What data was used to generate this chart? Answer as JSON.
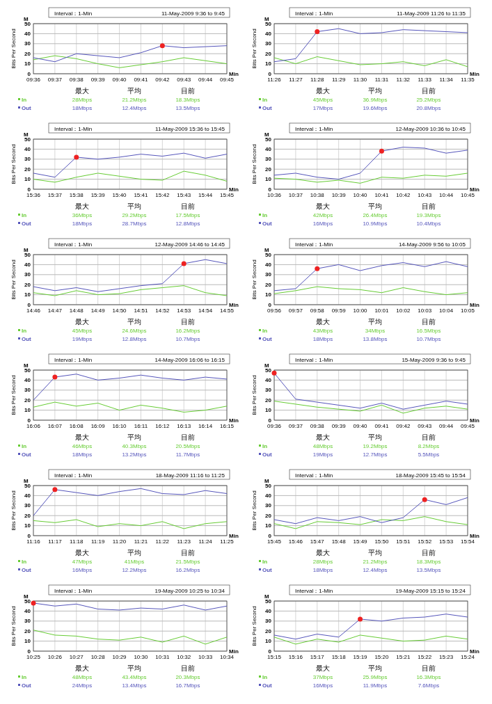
{
  "chart_data": [
    {
      "type": "line",
      "title": "Interval：1-Min",
      "subtitle": "11-May-2009  9:36 to 9:45",
      "xlabel": "Min",
      "ylabel": "Bits Per Second",
      "categories": [
        "09:36",
        "09:37",
        "09:38",
        "09:39",
        "09:40",
        "09:41",
        "09:42",
        "09:43",
        "09:44",
        "09:45"
      ],
      "ylim": [
        0,
        50
      ],
      "yticks": [
        0,
        10,
        20,
        30,
        40,
        50
      ],
      "grid": true,
      "legend": "bottom left",
      "series": [
        {
          "name": "In",
          "color": "#66cc33",
          "values": [
            14,
            18,
            15,
            10,
            6,
            9,
            12,
            16,
            13,
            10
          ]
        },
        {
          "name": "Out",
          "color": "#5555bb",
          "values": [
            16,
            12,
            20,
            18,
            16,
            21,
            28,
            26,
            27,
            28
          ]
        },
        {
          "type": "scatter",
          "color": "#ee2222",
          "values": [
            null,
            null,
            null,
            null,
            null,
            null,
            28,
            null,
            null,
            null
          ]
        }
      ],
      "annotations": [
        "M",
        "最大",
        "平均",
        "目前",
        "28Mbps",
        "21.2Mbps",
        "18.3Mbps",
        "18Mbps",
        "12.4Mbps",
        "13.5Mbps"
      ]
    },
    {
      "type": "line",
      "title": "Interval：1-Min",
      "subtitle": "11-May-2009  11:26 to 11:35",
      "xlabel": "Min",
      "ylabel": "Bits Per Second",
      "categories": [
        "11:26",
        "11:27",
        "11:28",
        "11:29",
        "11:30",
        "11:31",
        "11:32",
        "11:33",
        "11:34",
        "11:35"
      ],
      "ylim": [
        0,
        50
      ],
      "yticks": [
        0,
        10,
        20,
        30,
        40,
        50
      ],
      "grid": true,
      "legend": "bottom left",
      "series": [
        {
          "name": "In",
          "color": "#66cc33",
          "values": [
            16,
            10,
            17,
            13,
            9,
            10,
            12,
            8,
            14,
            7
          ]
        },
        {
          "name": "Out",
          "color": "#5555bb",
          "values": [
            12,
            15,
            42,
            45,
            40,
            41,
            44,
            43,
            42,
            41
          ]
        },
        {
          "type": "scatter",
          "color": "#ee2222",
          "values": [
            null,
            null,
            42,
            null,
            null,
            null,
            null,
            null,
            null,
            null
          ]
        }
      ],
      "annotations": [
        "M",
        "最大",
        "平均",
        "目前",
        "45Mbps",
        "36.9Mbps",
        "25.2Mbps",
        "17Mbps",
        "19.6Mbps",
        "20.8Mbps"
      ]
    },
    {
      "type": "line",
      "title": "Interval：1-Min",
      "subtitle": "11-May-2009  15:36 to 15:45",
      "xlabel": "Min",
      "ylabel": "Bits Per Second",
      "categories": [
        "15:36",
        "15:37",
        "15:38",
        "15:39",
        "15:40",
        "15:41",
        "15:42",
        "15:43",
        "15:44",
        "15:45"
      ],
      "ylim": [
        0,
        50
      ],
      "yticks": [
        0,
        10,
        20,
        30,
        40,
        50
      ],
      "grid": true,
      "legend": "bottom left",
      "series": [
        {
          "name": "In",
          "color": "#66cc33",
          "values": [
            10,
            7,
            12,
            16,
            13,
            10,
            9,
            18,
            14,
            8
          ]
        },
        {
          "name": "Out",
          "color": "#5555bb",
          "values": [
            16,
            12,
            32,
            30,
            32,
            35,
            33,
            36,
            31,
            35
          ]
        },
        {
          "type": "scatter",
          "color": "#ee2222",
          "values": [
            null,
            null,
            32,
            null,
            null,
            null,
            null,
            null,
            null,
            null
          ]
        }
      ],
      "annotations": [
        "M",
        "最大",
        "平均",
        "目前",
        "36Mbps",
        "29.2Mbps",
        "17.5Mbps",
        "18Mbps",
        "28.7Mbps",
        "12.8Mbps"
      ]
    },
    {
      "type": "line",
      "title": "Interval：1-Min",
      "subtitle": "12-May-2009  10:36 to 10:45",
      "xlabel": "Min",
      "ylabel": "Bits Per Second",
      "categories": [
        "10:36",
        "10:37",
        "10:38",
        "10:39",
        "10:40",
        "10:41",
        "10:42",
        "10:43",
        "10:44",
        "10:45"
      ],
      "ylim": [
        0,
        50
      ],
      "yticks": [
        0,
        10,
        20,
        30,
        40,
        50
      ],
      "grid": true,
      "legend": "bottom left",
      "series": [
        {
          "name": "In",
          "color": "#66cc33",
          "values": [
            11,
            10,
            7,
            9,
            6,
            12,
            11,
            14,
            13,
            16
          ]
        },
        {
          "name": "Out",
          "color": "#5555bb",
          "values": [
            14,
            16,
            12,
            10,
            16,
            38,
            42,
            41,
            36,
            39
          ]
        },
        {
          "type": "scatter",
          "color": "#ee2222",
          "values": [
            null,
            null,
            null,
            null,
            null,
            38,
            null,
            null,
            null,
            null
          ]
        }
      ],
      "annotations": [
        "M",
        "最大",
        "平均",
        "目前",
        "42Mbps",
        "26.4Mbps",
        "19.3Mbps",
        "16Mbps",
        "10.9Mbps",
        "10.4Mbps"
      ]
    },
    {
      "type": "line",
      "title": "Interval：1-Min",
      "subtitle": "12-May-2009  14:46 to 14:45",
      "xlabel": "Min",
      "ylabel": "Bits Per Second",
      "categories": [
        "14:46",
        "14:47",
        "14:48",
        "14:49",
        "14:50",
        "14:51",
        "14:52",
        "14:53",
        "14:54",
        "14:55"
      ],
      "ylim": [
        0,
        50
      ],
      "yticks": [
        0,
        10,
        20,
        30,
        40,
        50
      ],
      "grid": true,
      "legend": "bottom left",
      "series": [
        {
          "name": "In",
          "color": "#66cc33",
          "values": [
            12,
            9,
            14,
            10,
            11,
            15,
            17,
            19,
            12,
            9
          ]
        },
        {
          "name": "Out",
          "color": "#5555bb",
          "values": [
            18,
            14,
            17,
            13,
            16,
            19,
            21,
            41,
            45,
            41
          ]
        },
        {
          "type": "scatter",
          "color": "#ee2222",
          "values": [
            null,
            null,
            null,
            null,
            null,
            null,
            null,
            41,
            null,
            null
          ]
        }
      ],
      "annotations": [
        "M",
        "最大",
        "平均",
        "目前",
        "45Mbps",
        "24.6Mbps",
        "16.2Mbps",
        "19Mbps",
        "12.8Mbps",
        "10.7Mbps"
      ]
    },
    {
      "type": "line",
      "title": "Interval：1-Min",
      "subtitle": "14-May-2009  9:56 to 10:05",
      "xlabel": "Min",
      "ylabel": "Bits Per Second",
      "categories": [
        "09:56",
        "09:57",
        "09:58",
        "09:59",
        "10:00",
        "10:01",
        "10:02",
        "10:03",
        "10:04",
        "10:05"
      ],
      "ylim": [
        0,
        50
      ],
      "yticks": [
        0,
        10,
        20,
        30,
        40,
        50
      ],
      "grid": true,
      "legend": "bottom left",
      "series": [
        {
          "name": "In",
          "color": "#66cc33",
          "values": [
            11,
            14,
            18,
            16,
            15,
            12,
            17,
            13,
            10,
            12
          ]
        },
        {
          "name": "Out",
          "color": "#5555bb",
          "values": [
            14,
            16,
            36,
            40,
            34,
            39,
            42,
            38,
            43,
            38
          ]
        },
        {
          "type": "scatter",
          "color": "#ee2222",
          "values": [
            null,
            null,
            36,
            null,
            null,
            null,
            null,
            null,
            null,
            null
          ]
        }
      ],
      "annotations": [
        "M",
        "最大",
        "平均",
        "目前",
        "43Mbps",
        "34Mbps",
        "16.5Mbps",
        "18Mbps",
        "13.8Mbps",
        "10.7Mbps"
      ]
    },
    {
      "type": "line",
      "title": "Interval：1-Min",
      "subtitle": "14-May-2009  16:06 to 16:15",
      "xlabel": "Min",
      "ylabel": "Bits Per Second",
      "categories": [
        "16:06",
        "16:07",
        "16:08",
        "16:09",
        "16:10",
        "16:11",
        "16:12",
        "16:13",
        "16:14",
        "16:15"
      ],
      "ylim": [
        0,
        50
      ],
      "yticks": [
        0,
        10,
        20,
        30,
        40,
        50
      ],
      "grid": true,
      "legend": "bottom left",
      "series": [
        {
          "name": "In",
          "color": "#66cc33",
          "values": [
            13,
            18,
            14,
            17,
            10,
            15,
            12,
            8,
            10,
            14
          ]
        },
        {
          "name": "Out",
          "color": "#5555bb",
          "values": [
            20,
            43,
            46,
            40,
            42,
            45,
            42,
            40,
            43,
            41
          ]
        },
        {
          "type": "scatter",
          "color": "#ee2222",
          "values": [
            null,
            43,
            null,
            null,
            null,
            null,
            null,
            null,
            null,
            null
          ]
        }
      ],
      "annotations": [
        "M",
        "最大",
        "平均",
        "目前",
        "46Mbps",
        "40.3Mbps",
        "20.5Mbps",
        "18Mbps",
        "13.2Mbps",
        "11.7Mbps"
      ]
    },
    {
      "type": "line",
      "title": "Interval：1-Min",
      "subtitle": "15-May-2009  9:36 to 9:45",
      "xlabel": "Min",
      "ylabel": "Bits Per Second",
      "categories": [
        "09:36",
        "09:37",
        "09:38",
        "09:39",
        "09:40",
        "09:41",
        "09:42",
        "09:43",
        "09:44",
        "09:45"
      ],
      "ylim": [
        0,
        50
      ],
      "yticks": [
        0,
        10,
        20,
        30,
        40,
        50
      ],
      "grid": true,
      "legend": "bottom left",
      "series": [
        {
          "name": "In",
          "color": "#66cc33",
          "values": [
            19,
            16,
            13,
            11,
            9,
            15,
            7,
            12,
            14,
            11
          ]
        },
        {
          "name": "Out",
          "color": "#5555bb",
          "values": [
            47,
            21,
            18,
            15,
            12,
            17,
            11,
            15,
            19,
            16
          ]
        },
        {
          "type": "scatter",
          "color": "#ee2222",
          "values": [
            47,
            null,
            null,
            null,
            null,
            null,
            null,
            null,
            null,
            null
          ]
        }
      ],
      "annotations": [
        "M",
        "最大",
        "平均",
        "目前",
        "48Mbps",
        "19.2Mbps",
        "8.2Mbps",
        "19Mbps",
        "12.7Mbps",
        "5.5Mbps"
      ]
    },
    {
      "type": "line",
      "title": "Interval：1-Min",
      "subtitle": "18-May-2009  11:16 to 11:25",
      "xlabel": "Min",
      "ylabel": "Bits Per Second",
      "categories": [
        "11:16",
        "11:17",
        "11:18",
        "11:19",
        "11:20",
        "11:21",
        "11:22",
        "11:23",
        "11:24",
        "11:25"
      ],
      "ylim": [
        0,
        50
      ],
      "yticks": [
        0,
        10,
        20,
        30,
        40,
        50
      ],
      "grid": true,
      "legend": "bottom left",
      "series": [
        {
          "name": "In",
          "color": "#66cc33",
          "values": [
            15,
            13,
            16,
            9,
            12,
            10,
            14,
            7,
            12,
            14
          ]
        },
        {
          "name": "Out",
          "color": "#5555bb",
          "values": [
            20,
            46,
            43,
            40,
            44,
            47,
            42,
            41,
            45,
            42
          ]
        },
        {
          "type": "scatter",
          "color": "#ee2222",
          "values": [
            null,
            46,
            null,
            null,
            null,
            null,
            null,
            null,
            null,
            null
          ]
        }
      ],
      "annotations": [
        "M",
        "最大",
        "平均",
        "目前",
        "47Mbps",
        "41Mbps",
        "21.5Mbps",
        "16Mbps",
        "12.2Mbps",
        "16.2Mbps"
      ]
    },
    {
      "type": "line",
      "title": "Interval：1-Min",
      "subtitle": "18-May-2009  15:45 to 15:54",
      "xlabel": "Min",
      "ylabel": "Bits Per Second",
      "categories": [
        "15:45",
        "15:46",
        "15:47",
        "15:48",
        "15:49",
        "15:50",
        "15:51",
        "15:52",
        "15:53",
        "15:54"
      ],
      "ylim": [
        0,
        50
      ],
      "yticks": [
        0,
        10,
        20,
        30,
        40,
        50
      ],
      "grid": true,
      "legend": "bottom left",
      "series": [
        {
          "name": "In",
          "color": "#66cc33",
          "values": [
            12,
            7,
            14,
            13,
            11,
            16,
            15,
            19,
            14,
            11
          ]
        },
        {
          "name": "Out",
          "color": "#5555bb",
          "values": [
            16,
            12,
            18,
            15,
            19,
            13,
            18,
            36,
            31,
            38
          ]
        },
        {
          "type": "scatter",
          "color": "#ee2222",
          "values": [
            null,
            null,
            null,
            null,
            null,
            null,
            null,
            36,
            null,
            null
          ]
        }
      ],
      "annotations": [
        "M",
        "最大",
        "平均",
        "目前",
        "28Mbps",
        "21.2Mbps",
        "18.3Mbps",
        "18Mbps",
        "12.4Mbps",
        "13.5Mbps"
      ]
    },
    {
      "type": "line",
      "title": "Interval：1-Min",
      "subtitle": "19-May-2009  10:25 to 10:34",
      "xlabel": "Min",
      "ylabel": "Bits Per Second",
      "categories": [
        "10:25",
        "10:26",
        "10:27",
        "10:28",
        "10:29",
        "10:30",
        "10:31",
        "10:32",
        "10:33",
        "10:34"
      ],
      "ylim": [
        0,
        50
      ],
      "yticks": [
        0,
        10,
        20,
        30,
        40,
        50
      ],
      "grid": true,
      "legend": "bottom left",
      "series": [
        {
          "name": "In",
          "color": "#66cc33",
          "values": [
            21,
            16,
            15,
            12,
            11,
            14,
            9,
            15,
            7,
            14
          ]
        },
        {
          "name": "Out",
          "color": "#5555bb",
          "values": [
            48,
            45,
            47,
            42,
            41,
            43,
            42,
            46,
            41,
            45
          ]
        },
        {
          "type": "scatter",
          "color": "#ee2222",
          "values": [
            48,
            null,
            null,
            null,
            null,
            null,
            null,
            null,
            null,
            null
          ]
        }
      ],
      "annotations": [
        "M",
        "最大",
        "平均",
        "目前",
        "48Mbps",
        "43.4Mbps",
        "20.3Mbps",
        "24Mbps",
        "13.4Mbps",
        "16.7Mbps"
      ]
    },
    {
      "type": "line",
      "title": "Interval：1-Min",
      "subtitle": "19-May-2009  15:15 to 15:24",
      "xlabel": "Min",
      "ylabel": "Bits Per Second",
      "categories": [
        "15:15",
        "15:16",
        "15:17",
        "15:18",
        "15:19",
        "15:20",
        "15:21",
        "15:22",
        "15:23",
        "15:24"
      ],
      "ylim": [
        0,
        50
      ],
      "yticks": [
        0,
        10,
        20,
        30,
        40,
        50
      ],
      "grid": true,
      "legend": "bottom left",
      "series": [
        {
          "name": "In",
          "color": "#66cc33",
          "values": [
            14,
            7,
            12,
            9,
            16,
            13,
            10,
            11,
            15,
            12
          ]
        },
        {
          "name": "Out",
          "color": "#5555bb",
          "values": [
            16,
            12,
            17,
            14,
            32,
            30,
            33,
            34,
            37,
            34
          ]
        },
        {
          "type": "scatter",
          "color": "#ee2222",
          "values": [
            null,
            null,
            null,
            null,
            32,
            null,
            null,
            null,
            null,
            null
          ]
        }
      ],
      "annotations": [
        "M",
        "最大",
        "平均",
        "目前",
        "37Mbps",
        "25.9Mbps",
        "16.3Mbps",
        "16Mbps",
        "11.9Mbps",
        "7.6Mbps"
      ]
    }
  ]
}
